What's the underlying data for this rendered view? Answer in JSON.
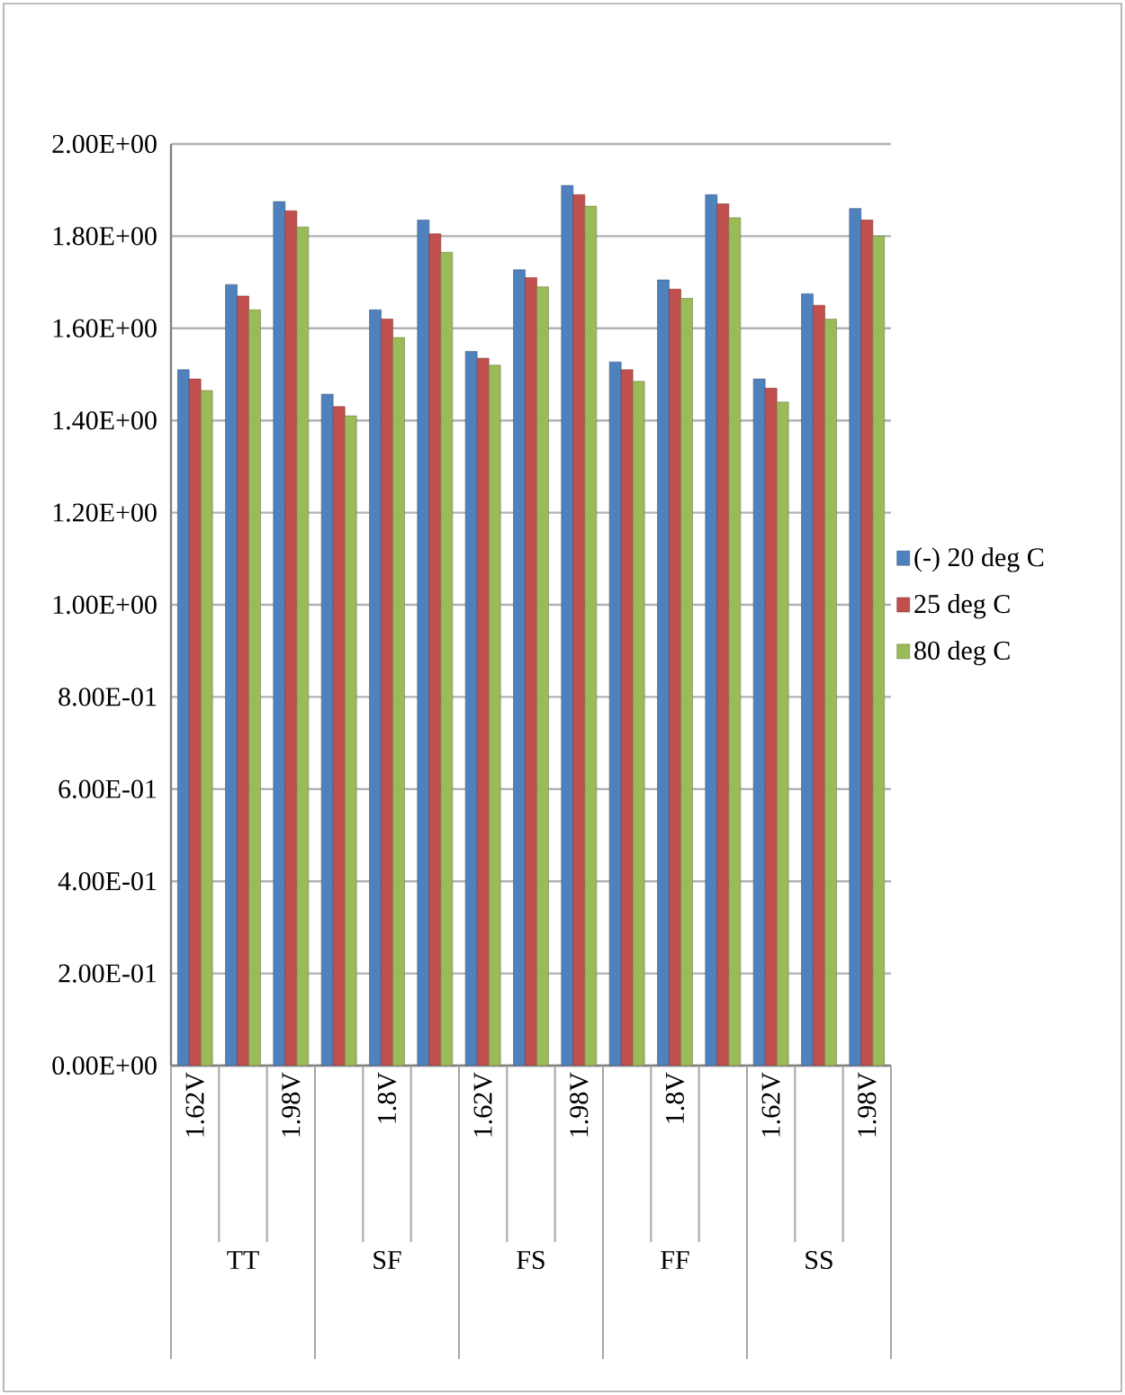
{
  "chart_data": {
    "type": "bar",
    "categories": [
      "1.62V",
      null,
      "1.98V",
      null,
      "1.8V",
      null,
      "1.62V",
      null,
      "1.98V",
      null,
      "1.8V",
      null,
      "1.62V",
      null,
      "1.98V"
    ],
    "series": [
      {
        "name": "(-) 20 deg C",
        "color": "#4f81bd",
        "values": [
          1.51,
          1.695,
          1.875,
          1.457,
          1.64,
          1.835,
          1.55,
          1.727,
          1.91,
          1.527,
          1.705,
          1.89,
          1.49,
          1.675,
          1.86
        ]
      },
      {
        "name": "25 deg C",
        "color": "#c0504d",
        "values": [
          1.49,
          1.67,
          1.855,
          1.43,
          1.62,
          1.805,
          1.535,
          1.71,
          1.89,
          1.51,
          1.685,
          1.87,
          1.47,
          1.65,
          1.835
        ]
      },
      {
        "name": "80 deg C",
        "color": "#9bbb59",
        "values": [
          1.465,
          1.64,
          1.82,
          1.41,
          1.58,
          1.765,
          1.52,
          1.69,
          1.865,
          1.485,
          1.665,
          1.84,
          1.44,
          1.62,
          1.8
        ]
      }
    ],
    "annotations": [
      "TT",
      "SF",
      "FS",
      "FF",
      "SS"
    ],
    "ylim": [
      0,
      2
    ],
    "yticks": [
      {
        "value": 0,
        "label": "0.00E+00"
      },
      {
        "value": 0.2,
        "label": "2.00E-01"
      },
      {
        "value": 0.4,
        "label": "4.00E-01"
      },
      {
        "value": 0.6,
        "label": "6.00E-01"
      },
      {
        "value": 0.8,
        "label": "8.00E-01"
      },
      {
        "value": 1,
        "label": "1.00E+00"
      },
      {
        "value": 1.2,
        "label": "1.20E+00"
      },
      {
        "value": 1.4,
        "label": "1.40E+00"
      },
      {
        "value": 1.6,
        "label": "1.60E+00"
      },
      {
        "value": 1.8,
        "label": "1.80E+00"
      },
      {
        "value": 2,
        "label": "2.00E+00"
      }
    ],
    "grid": "y",
    "legend": "right"
  }
}
